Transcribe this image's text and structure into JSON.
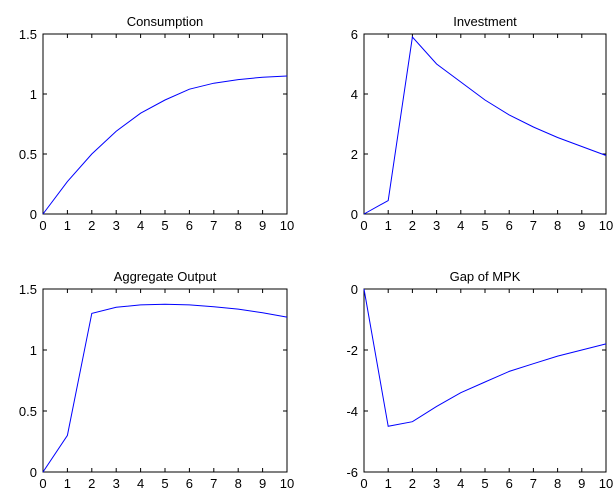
{
  "chart_data": [
    {
      "type": "line",
      "title": "Consumption",
      "xlabel": "",
      "ylabel": "",
      "x": [
        0,
        1,
        2,
        3,
        4,
        5,
        6,
        7,
        8,
        9,
        10
      ],
      "values": [
        0,
        0.27,
        0.5,
        0.69,
        0.84,
        0.95,
        1.04,
        1.09,
        1.12,
        1.14,
        1.15
      ],
      "xlim": [
        0,
        10
      ],
      "ylim": [
        0,
        1.5
      ],
      "xticks": [
        "0",
        "1",
        "2",
        "3",
        "4",
        "5",
        "6",
        "7",
        "8",
        "9",
        "10"
      ],
      "yticks": [
        {
          "value": 0,
          "label": "0"
        },
        {
          "value": 0.5,
          "label": "0.5"
        },
        {
          "value": 1,
          "label": "1"
        },
        {
          "value": 1.5,
          "label": "1.5"
        }
      ],
      "grid": false,
      "color": "#0000ff"
    },
    {
      "type": "line",
      "title": "Investment",
      "xlabel": "",
      "ylabel": "",
      "x": [
        0,
        1,
        2,
        3,
        4,
        5,
        6,
        7,
        8,
        9,
        10
      ],
      "values": [
        0,
        0.45,
        5.9,
        5.0,
        4.4,
        3.8,
        3.3,
        2.9,
        2.55,
        2.25,
        1.95
      ],
      "xlim": [
        0,
        10
      ],
      "ylim": [
        0,
        6
      ],
      "xticks": [
        "0",
        "1",
        "2",
        "3",
        "4",
        "5",
        "6",
        "7",
        "8",
        "9",
        "10"
      ],
      "yticks": [
        {
          "value": 0,
          "label": "0"
        },
        {
          "value": 2,
          "label": "2"
        },
        {
          "value": 4,
          "label": "4"
        },
        {
          "value": 6,
          "label": "6"
        }
      ],
      "grid": false,
      "color": "#0000ff"
    },
    {
      "type": "line",
      "title": "Aggregate Output",
      "xlabel": "",
      "ylabel": "",
      "x": [
        0,
        1,
        2,
        3,
        4,
        5,
        6,
        7,
        8,
        9,
        10
      ],
      "values": [
        0,
        0.3,
        1.3,
        1.35,
        1.37,
        1.375,
        1.37,
        1.355,
        1.335,
        1.305,
        1.27
      ],
      "xlim": [
        0,
        10
      ],
      "ylim": [
        0,
        1.5
      ],
      "xticks": [
        "0",
        "1",
        "2",
        "3",
        "4",
        "5",
        "6",
        "7",
        "8",
        "9",
        "10"
      ],
      "yticks": [
        {
          "value": 0,
          "label": "0"
        },
        {
          "value": 0.5,
          "label": "0.5"
        },
        {
          "value": 1,
          "label": "1"
        },
        {
          "value": 1.5,
          "label": "1.5"
        }
      ],
      "grid": false,
      "color": "#0000ff"
    },
    {
      "type": "line",
      "title": "Gap of MPK",
      "xlabel": "",
      "ylabel": "",
      "x": [
        0,
        1,
        2,
        3,
        4,
        5,
        6,
        7,
        8,
        9,
        10
      ],
      "values": [
        0,
        -4.5,
        -4.35,
        -3.85,
        -3.4,
        -3.05,
        -2.7,
        -2.45,
        -2.2,
        -2.0,
        -1.8
      ],
      "xlim": [
        0,
        10
      ],
      "ylim": [
        -6,
        0
      ],
      "xticks": [
        "0",
        "1",
        "2",
        "3",
        "4",
        "5",
        "6",
        "7",
        "8",
        "9",
        "10"
      ],
      "yticks": [
        {
          "value": -6,
          "label": "-6"
        },
        {
          "value": -4,
          "label": "-4"
        },
        {
          "value": -2,
          "label": "-2"
        },
        {
          "value": 0,
          "label": "0"
        }
      ],
      "grid": false,
      "color": "#0000ff"
    }
  ]
}
